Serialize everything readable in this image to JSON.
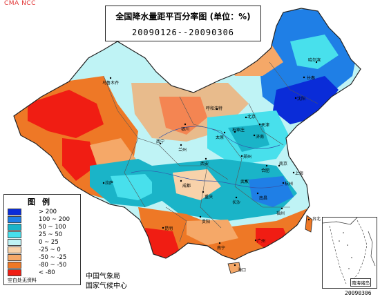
{
  "watermark": "CMA NCC",
  "title": "全国降水量距平百分率图 (单位：%)",
  "period": "20090126--20090306",
  "legend": {
    "title": "图例",
    "items": [
      {
        "label": "> 200",
        "color": "#0a2cd8"
      },
      {
        "label": "100 ~ 200",
        "color": "#1f7fe6"
      },
      {
        "label": "50 ~ 100",
        "color": "#1ab4c8"
      },
      {
        "label": "25 ~ 50",
        "color": "#48e0ec"
      },
      {
        "label": "0 ~ 25",
        "color": "#bff3f5"
      },
      {
        "label": "-25 ~ 0",
        "color": "#f8d2aa"
      },
      {
        "label": "-50 ~ -25",
        "color": "#f5a868"
      },
      {
        "label": "-80 ~ -50",
        "color": "#ee7826"
      },
      {
        "label": "< -80",
        "color": "#f01d13"
      }
    ],
    "note": "空白处无资料"
  },
  "credits": [
    "中国气象局",
    "国家气候中心"
  ],
  "inset_label": "南海诸岛",
  "date_stamp": "20090306",
  "cities": [
    {
      "name": "乌鲁木齐"
    },
    {
      "name": "哈尔滨"
    },
    {
      "name": "长春"
    },
    {
      "name": "沈阳"
    },
    {
      "name": "呼和浩特"
    },
    {
      "name": "北京"
    },
    {
      "name": "天津"
    },
    {
      "name": "石家庄"
    },
    {
      "name": "太原"
    },
    {
      "name": "济南"
    },
    {
      "name": "银川"
    },
    {
      "name": "西宁"
    },
    {
      "name": "兰州"
    },
    {
      "name": "郑州"
    },
    {
      "name": "西安"
    },
    {
      "name": "合肥"
    },
    {
      "name": "南京"
    },
    {
      "name": "上海"
    },
    {
      "name": "拉萨"
    },
    {
      "name": "成都"
    },
    {
      "name": "武汉"
    },
    {
      "name": "杭州"
    },
    {
      "name": "重庆"
    },
    {
      "name": "长沙"
    },
    {
      "name": "南昌"
    },
    {
      "name": "福州"
    },
    {
      "name": "贵阳"
    },
    {
      "name": "台北"
    },
    {
      "name": "昆明"
    },
    {
      "name": "南宁"
    },
    {
      "name": "广州"
    },
    {
      "name": "海口"
    }
  ]
}
